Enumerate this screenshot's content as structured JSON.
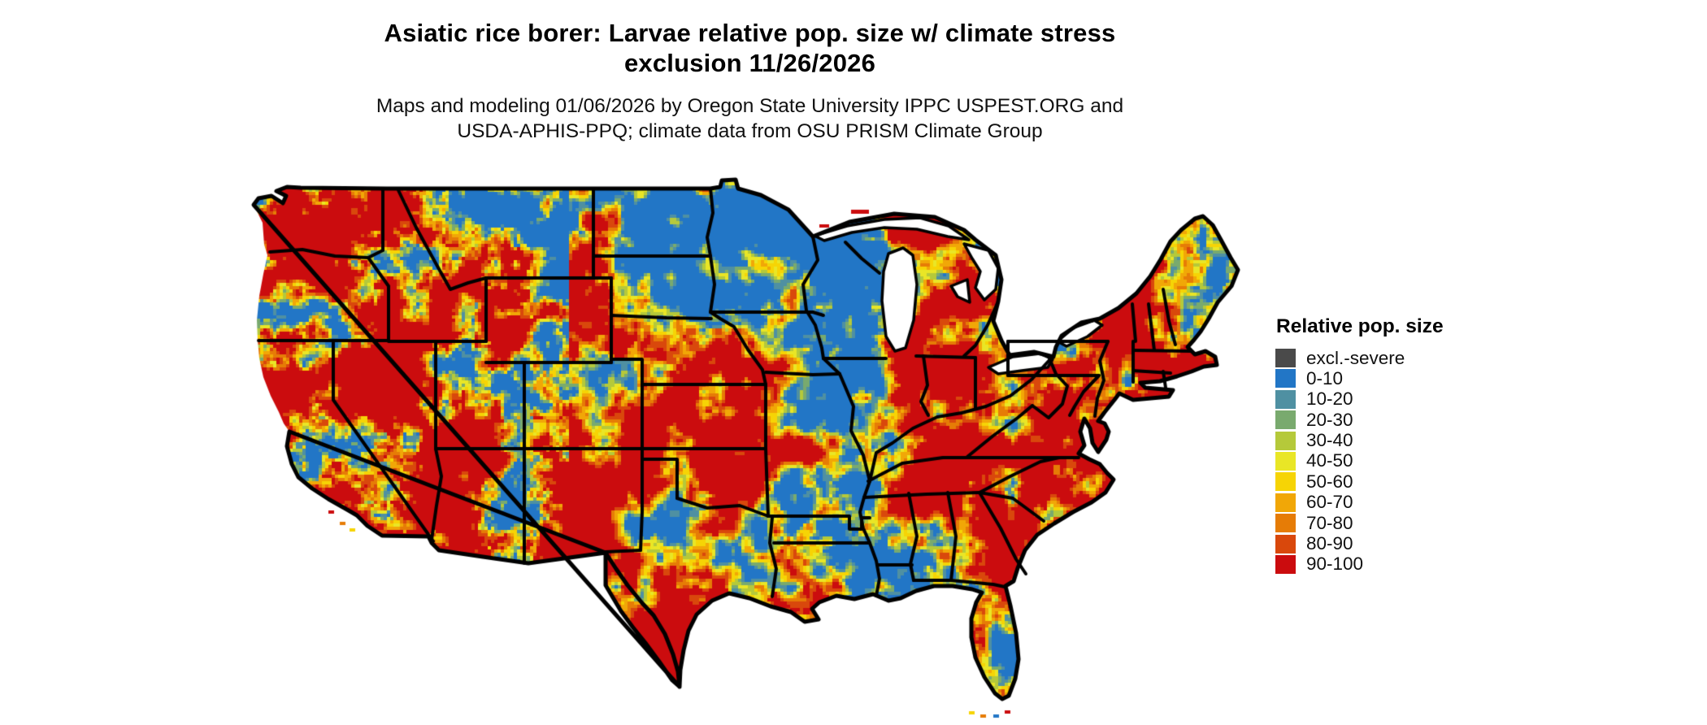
{
  "title": {
    "line1": "Asiatic rice borer: Larvae relative pop. size w/ climate stress",
    "line2": "exclusion 11/26/2026"
  },
  "subtitle": {
    "line1": "Maps and modeling 01/06/2026 by Oregon State University IPPC USPEST.ORG and",
    "line2": "USDA-APHIS-PPQ; climate data from OSU PRISM Climate Group"
  },
  "legend": {
    "title": "Relative pop. size",
    "items": [
      {
        "label": "excl.-severe",
        "color": "#4a4a4a"
      },
      {
        "label": "0-10",
        "color": "#2276c6"
      },
      {
        "label": "10-20",
        "color": "#4f90a2"
      },
      {
        "label": "20-30",
        "color": "#79aa6e"
      },
      {
        "label": "30-40",
        "color": "#b5c93a"
      },
      {
        "label": "40-50",
        "color": "#e9e626"
      },
      {
        "label": "50-60",
        "color": "#f6d405"
      },
      {
        "label": "60-70",
        "color": "#f1a707"
      },
      {
        "label": "70-80",
        "color": "#e67c06"
      },
      {
        "label": "80-90",
        "color": "#d9480c"
      },
      {
        "label": "90-100",
        "color": "#cb0c0e"
      }
    ]
  },
  "map_data": {
    "type": "choropleth",
    "region": "Contiguous United States with state boundaries",
    "variable": "Asiatic rice borer larvae relative population size with climate stress exclusion",
    "date_shown": "11/26/2026",
    "classes": [
      "excl.-severe",
      "0-10",
      "10-20",
      "20-30",
      "30-40",
      "40-50",
      "50-60",
      "60-70",
      "70-80",
      "80-90",
      "90-100"
    ]
  }
}
